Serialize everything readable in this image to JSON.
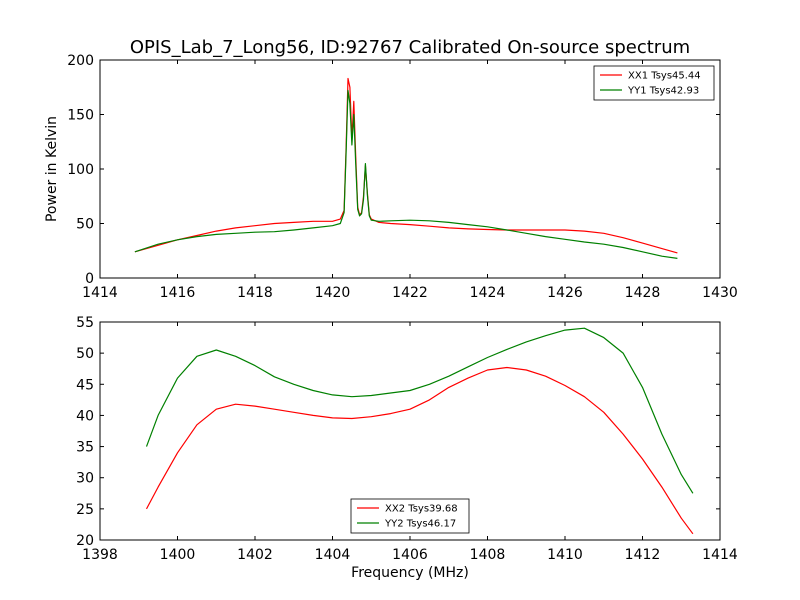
{
  "title": "OPIS_Lab_7_Long56, ID:92767 Calibrated On-source spectrum",
  "chart_data": [
    {
      "type": "line",
      "title": "OPIS_Lab_7_Long56, ID:92767 Calibrated On-source spectrum",
      "xlabel": "",
      "ylabel": "Power in Kelvin",
      "xlim": [
        1414,
        1430
      ],
      "ylim": [
        0,
        200
      ],
      "xticks": [
        "1414",
        "1416",
        "1418",
        "1420",
        "1422",
        "1424",
        "1426",
        "1428",
        "1430"
      ],
      "yticks": [
        "0",
        "50",
        "100",
        "150",
        "200"
      ],
      "grid": false,
      "legend_position": "top-right",
      "series": [
        {
          "name": "XX1 Tsys45.44",
          "color": "#ff0000",
          "x": [
            1414.9,
            1415.5,
            1416,
            1416.5,
            1417,
            1417.5,
            1418,
            1418.5,
            1419,
            1419.5,
            1420,
            1420.2,
            1420.3,
            1420.35,
            1420.4,
            1420.45,
            1420.5,
            1420.55,
            1420.6,
            1420.65,
            1420.7,
            1420.75,
            1420.8,
            1420.85,
            1420.9,
            1420.95,
            1421,
            1421.2,
            1421.5,
            1422,
            1422.5,
            1423,
            1423.5,
            1424,
            1424.5,
            1425,
            1425.5,
            1426,
            1426.5,
            1427,
            1427.5,
            1428,
            1428.5,
            1428.9
          ],
          "y": [
            24,
            30,
            35,
            39,
            43,
            46,
            48,
            50,
            51,
            52,
            52,
            54,
            62,
            120,
            183,
            175,
            128,
            162,
            112,
            65,
            58,
            60,
            75,
            103,
            78,
            58,
            54,
            51,
            50,
            49,
            47.5,
            46,
            45,
            44.5,
            44,
            44,
            44,
            44,
            43,
            41,
            37,
            32,
            27,
            23
          ]
        },
        {
          "name": "YY1 Tsys42.93",
          "color": "#008000",
          "x": [
            1414.9,
            1415.5,
            1416,
            1416.5,
            1417,
            1417.5,
            1418,
            1418.5,
            1419,
            1419.5,
            1420,
            1420.2,
            1420.3,
            1420.35,
            1420.4,
            1420.45,
            1420.5,
            1420.55,
            1420.6,
            1420.65,
            1420.7,
            1420.75,
            1420.8,
            1420.85,
            1420.9,
            1420.95,
            1421,
            1421.2,
            1421.5,
            1422,
            1422.5,
            1423,
            1423.5,
            1424,
            1424.5,
            1425,
            1425.5,
            1426,
            1426.5,
            1427,
            1427.5,
            1428,
            1428.5,
            1428.9
          ],
          "y": [
            24,
            31,
            35,
            38,
            40,
            41,
            42,
            42.5,
            44,
            46,
            48,
            50,
            60,
            115,
            172,
            160,
            122,
            150,
            105,
            63,
            57,
            59,
            72,
            105,
            76,
            57,
            53,
            52,
            52.5,
            53,
            52.5,
            51,
            49,
            47,
            44,
            41,
            38,
            35.5,
            33,
            31,
            28,
            24,
            20,
            18
          ]
        }
      ]
    },
    {
      "type": "line",
      "title": "",
      "xlabel": "Frequency (MHz)",
      "ylabel": "",
      "xlim": [
        1398,
        1414
      ],
      "ylim": [
        20,
        55
      ],
      "xticks": [
        "1398",
        "1400",
        "1402",
        "1404",
        "1406",
        "1408",
        "1410",
        "1412",
        "1414"
      ],
      "yticks": [
        "20",
        "25",
        "30",
        "35",
        "40",
        "45",
        "50",
        "55"
      ],
      "grid": false,
      "legend_position": "bottom-center",
      "series": [
        {
          "name": "XX2 Tsys39.68",
          "color": "#ff0000",
          "x": [
            1399.2,
            1399.5,
            1400,
            1400.5,
            1401,
            1401.5,
            1402,
            1402.5,
            1403,
            1403.5,
            1404,
            1404.5,
            1405,
            1405.5,
            1406,
            1406.5,
            1407,
            1407.5,
            1408,
            1408.5,
            1409,
            1409.5,
            1410,
            1410.5,
            1411,
            1411.5,
            1412,
            1412.5,
            1413,
            1413.3
          ],
          "y": [
            25,
            28.5,
            34,
            38.5,
            41,
            41.8,
            41.5,
            41,
            40.5,
            40,
            39.6,
            39.5,
            39.8,
            40.3,
            41,
            42.5,
            44.5,
            46,
            47.3,
            47.7,
            47.3,
            46.3,
            44.8,
            43,
            40.5,
            37,
            33,
            28.5,
            23.5,
            21
          ]
        },
        {
          "name": "YY2 Tsys46.17",
          "color": "#008000",
          "x": [
            1399.2,
            1399.5,
            1400,
            1400.5,
            1401,
            1401.5,
            1402,
            1402.5,
            1403,
            1403.5,
            1404,
            1404.5,
            1405,
            1405.5,
            1406,
            1406.5,
            1407,
            1407.5,
            1408,
            1408.5,
            1409,
            1409.5,
            1410,
            1410.5,
            1411,
            1411.5,
            1412,
            1412.5,
            1413,
            1413.3
          ],
          "y": [
            35,
            40,
            46,
            49.5,
            50.5,
            49.5,
            48,
            46.2,
            45,
            44,
            43.3,
            43,
            43.2,
            43.6,
            44,
            45,
            46.3,
            47.8,
            49.3,
            50.6,
            51.8,
            52.8,
            53.7,
            54,
            52.5,
            50,
            44.5,
            37,
            30.5,
            27.5
          ]
        }
      ]
    }
  ]
}
